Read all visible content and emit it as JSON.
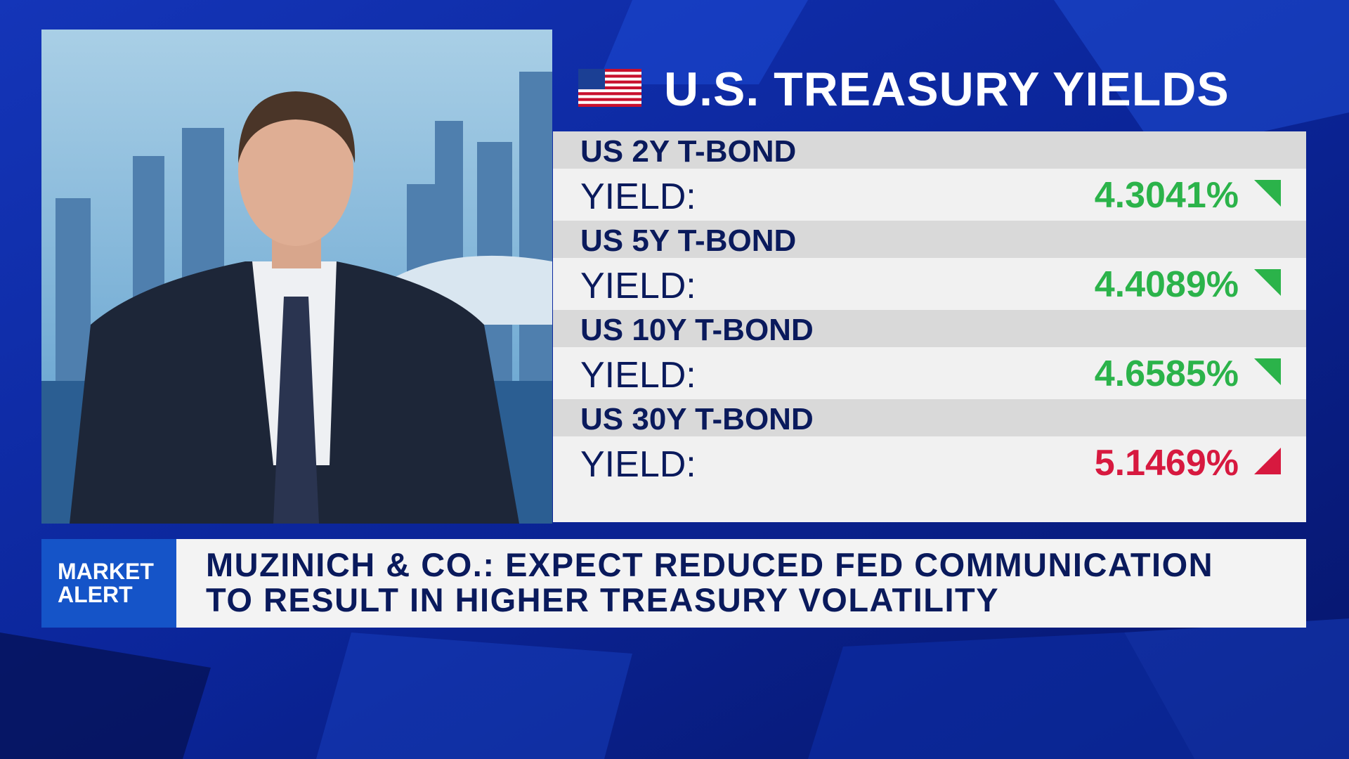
{
  "header": {
    "title": "U.S. TREASURY YIELDS"
  },
  "table": {
    "rows": [
      {
        "name": "US 2Y T-BOND",
        "label": "YIELD:",
        "value": "4.3041%",
        "direction": "down",
        "color": "#2bb34a"
      },
      {
        "name": "US 5Y T-BOND",
        "label": "YIELD:",
        "value": "4.4089%",
        "direction": "down",
        "color": "#2bb34a"
      },
      {
        "name": "US 10Y T-BOND",
        "label": "YIELD:",
        "value": "4.6585%",
        "direction": "down",
        "color": "#2bb34a"
      },
      {
        "name": "US 30Y T-BOND",
        "label": "YIELD:",
        "value": "5.1469%",
        "direction": "up",
        "color": "#d7193f"
      }
    ]
  },
  "ticker": {
    "tag": [
      "MARKET",
      "ALERT"
    ],
    "headline": [
      "MUZINICH & CO.: EXPECT REDUCED FED COMMUNICATION",
      "TO RESULT IN HIGHER TREASURY VOLATILITY"
    ]
  }
}
